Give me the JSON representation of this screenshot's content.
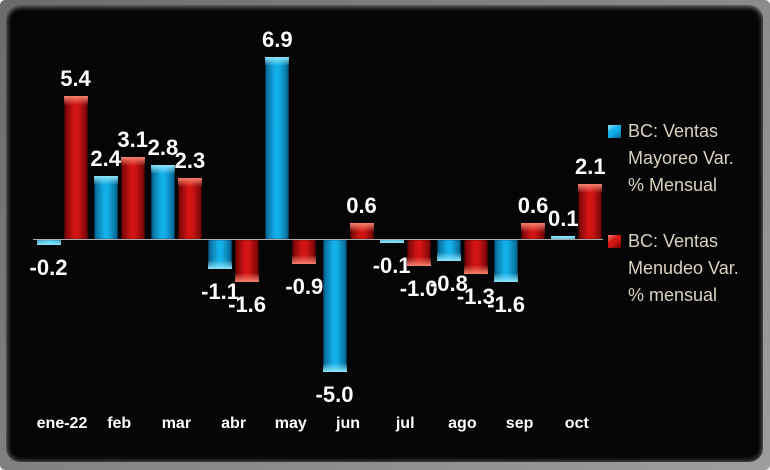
{
  "chart_data": {
    "type": "bar",
    "categories": [
      "ene-22",
      "feb",
      "mar",
      "abr",
      "may",
      "jun",
      "jul",
      "ago",
      "sep",
      "oct"
    ],
    "series": [
      {
        "id": "mayoreo",
        "name": "BC: Ventas Mayoreo Var. % Mensual",
        "color": "#12AFE8",
        "color_light": "#8FE6FB",
        "color_dark": "#07608C",
        "values": [
          -0.2,
          2.4,
          2.8,
          -1.1,
          6.9,
          -5.0,
          -0.1,
          -0.8,
          -1.6,
          0.1
        ]
      },
      {
        "id": "menudeo",
        "name": "BC: Ventas Menudeo Var. % mensual",
        "color": "#D31414",
        "color_light": "#F5836E",
        "color_dark": "#6E0505",
        "values": [
          5.4,
          3.1,
          2.3,
          -1.6,
          -0.9,
          0.6,
          -1.0,
          -1.3,
          0.6,
          2.1
        ]
      }
    ],
    "data_labels": {
      "visible": true,
      "decimals": 1,
      "color": "#FFFFFF"
    },
    "x_axis": {
      "labels_color": "#FFFFFF",
      "line_color": "#ADADAD"
    },
    "y_axis": {
      "visible": false,
      "gridlines": false,
      "data_range": [
        -5.0,
        6.9
      ]
    },
    "legend": {
      "position": "right",
      "text_color": "#D9D2BF",
      "entries": [
        {
          "series_id": "mayoreo",
          "lines": [
            "BC: Ventas",
            "Mayoreo Var.",
            "% Mensual"
          ]
        },
        {
          "series_id": "menudeo",
          "lines": [
            "BC: Ventas",
            "Menudeo Var.",
            "% mensual"
          ]
        }
      ]
    },
    "background": "#050505",
    "frame_color": "#828282"
  }
}
